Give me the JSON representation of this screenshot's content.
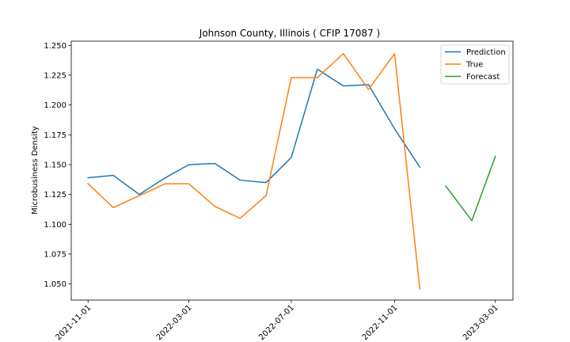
{
  "chart_data": {
    "type": "line",
    "title": "Johnson County, Illinois ( CFIP 17087 )",
    "xlabel": "",
    "ylabel": "Microbusiness Density",
    "x_axis": {
      "type": "date",
      "range": [
        "2021-10-12",
        "2023-03-22"
      ],
      "ticks": [
        "2021-11-01",
        "2022-03-01",
        "2022-07-01",
        "2022-11-01",
        "2023-03-01"
      ]
    },
    "y_axis": {
      "range": [
        1.0365,
        1.2535
      ],
      "ticks": [
        "1.050",
        "1.075",
        "1.100",
        "1.125",
        "1.150",
        "1.175",
        "1.200",
        "1.225",
        "1.250"
      ]
    },
    "grid": false,
    "legend": "top-right",
    "series": [
      {
        "name": "Prediction",
        "color": "#1f77b4",
        "x": [
          "2021-11-01",
          "2021-12-01",
          "2022-01-01",
          "2022-02-01",
          "2022-03-01",
          "2022-04-01",
          "2022-05-01",
          "2022-06-01",
          "2022-07-01",
          "2022-08-01",
          "2022-09-01",
          "2022-10-01",
          "2022-11-01",
          "2022-12-01"
        ],
        "y": [
          1.139,
          1.141,
          1.125,
          1.139,
          1.15,
          1.151,
          1.137,
          1.135,
          1.156,
          1.23,
          1.216,
          1.217,
          1.18,
          1.148
        ]
      },
      {
        "name": "True",
        "color": "#ff7f0e",
        "x": [
          "2021-11-01",
          "2021-12-01",
          "2022-01-01",
          "2022-02-01",
          "2022-03-01",
          "2022-04-01",
          "2022-05-01",
          "2022-06-01",
          "2022-07-01",
          "2022-08-01",
          "2022-09-01",
          "2022-10-01",
          "2022-11-01",
          "2022-12-01"
        ],
        "y": [
          1.134,
          1.114,
          1.124,
          1.134,
          1.134,
          1.115,
          1.105,
          1.124,
          1.223,
          1.223,
          1.243,
          1.213,
          1.243,
          1.046
        ]
      },
      {
        "name": "Forecast",
        "color": "#2ca02c",
        "x": [
          "2023-01-01",
          "2023-02-01",
          "2023-03-01"
        ],
        "y": [
          1.132,
          1.103,
          1.157
        ]
      }
    ]
  }
}
